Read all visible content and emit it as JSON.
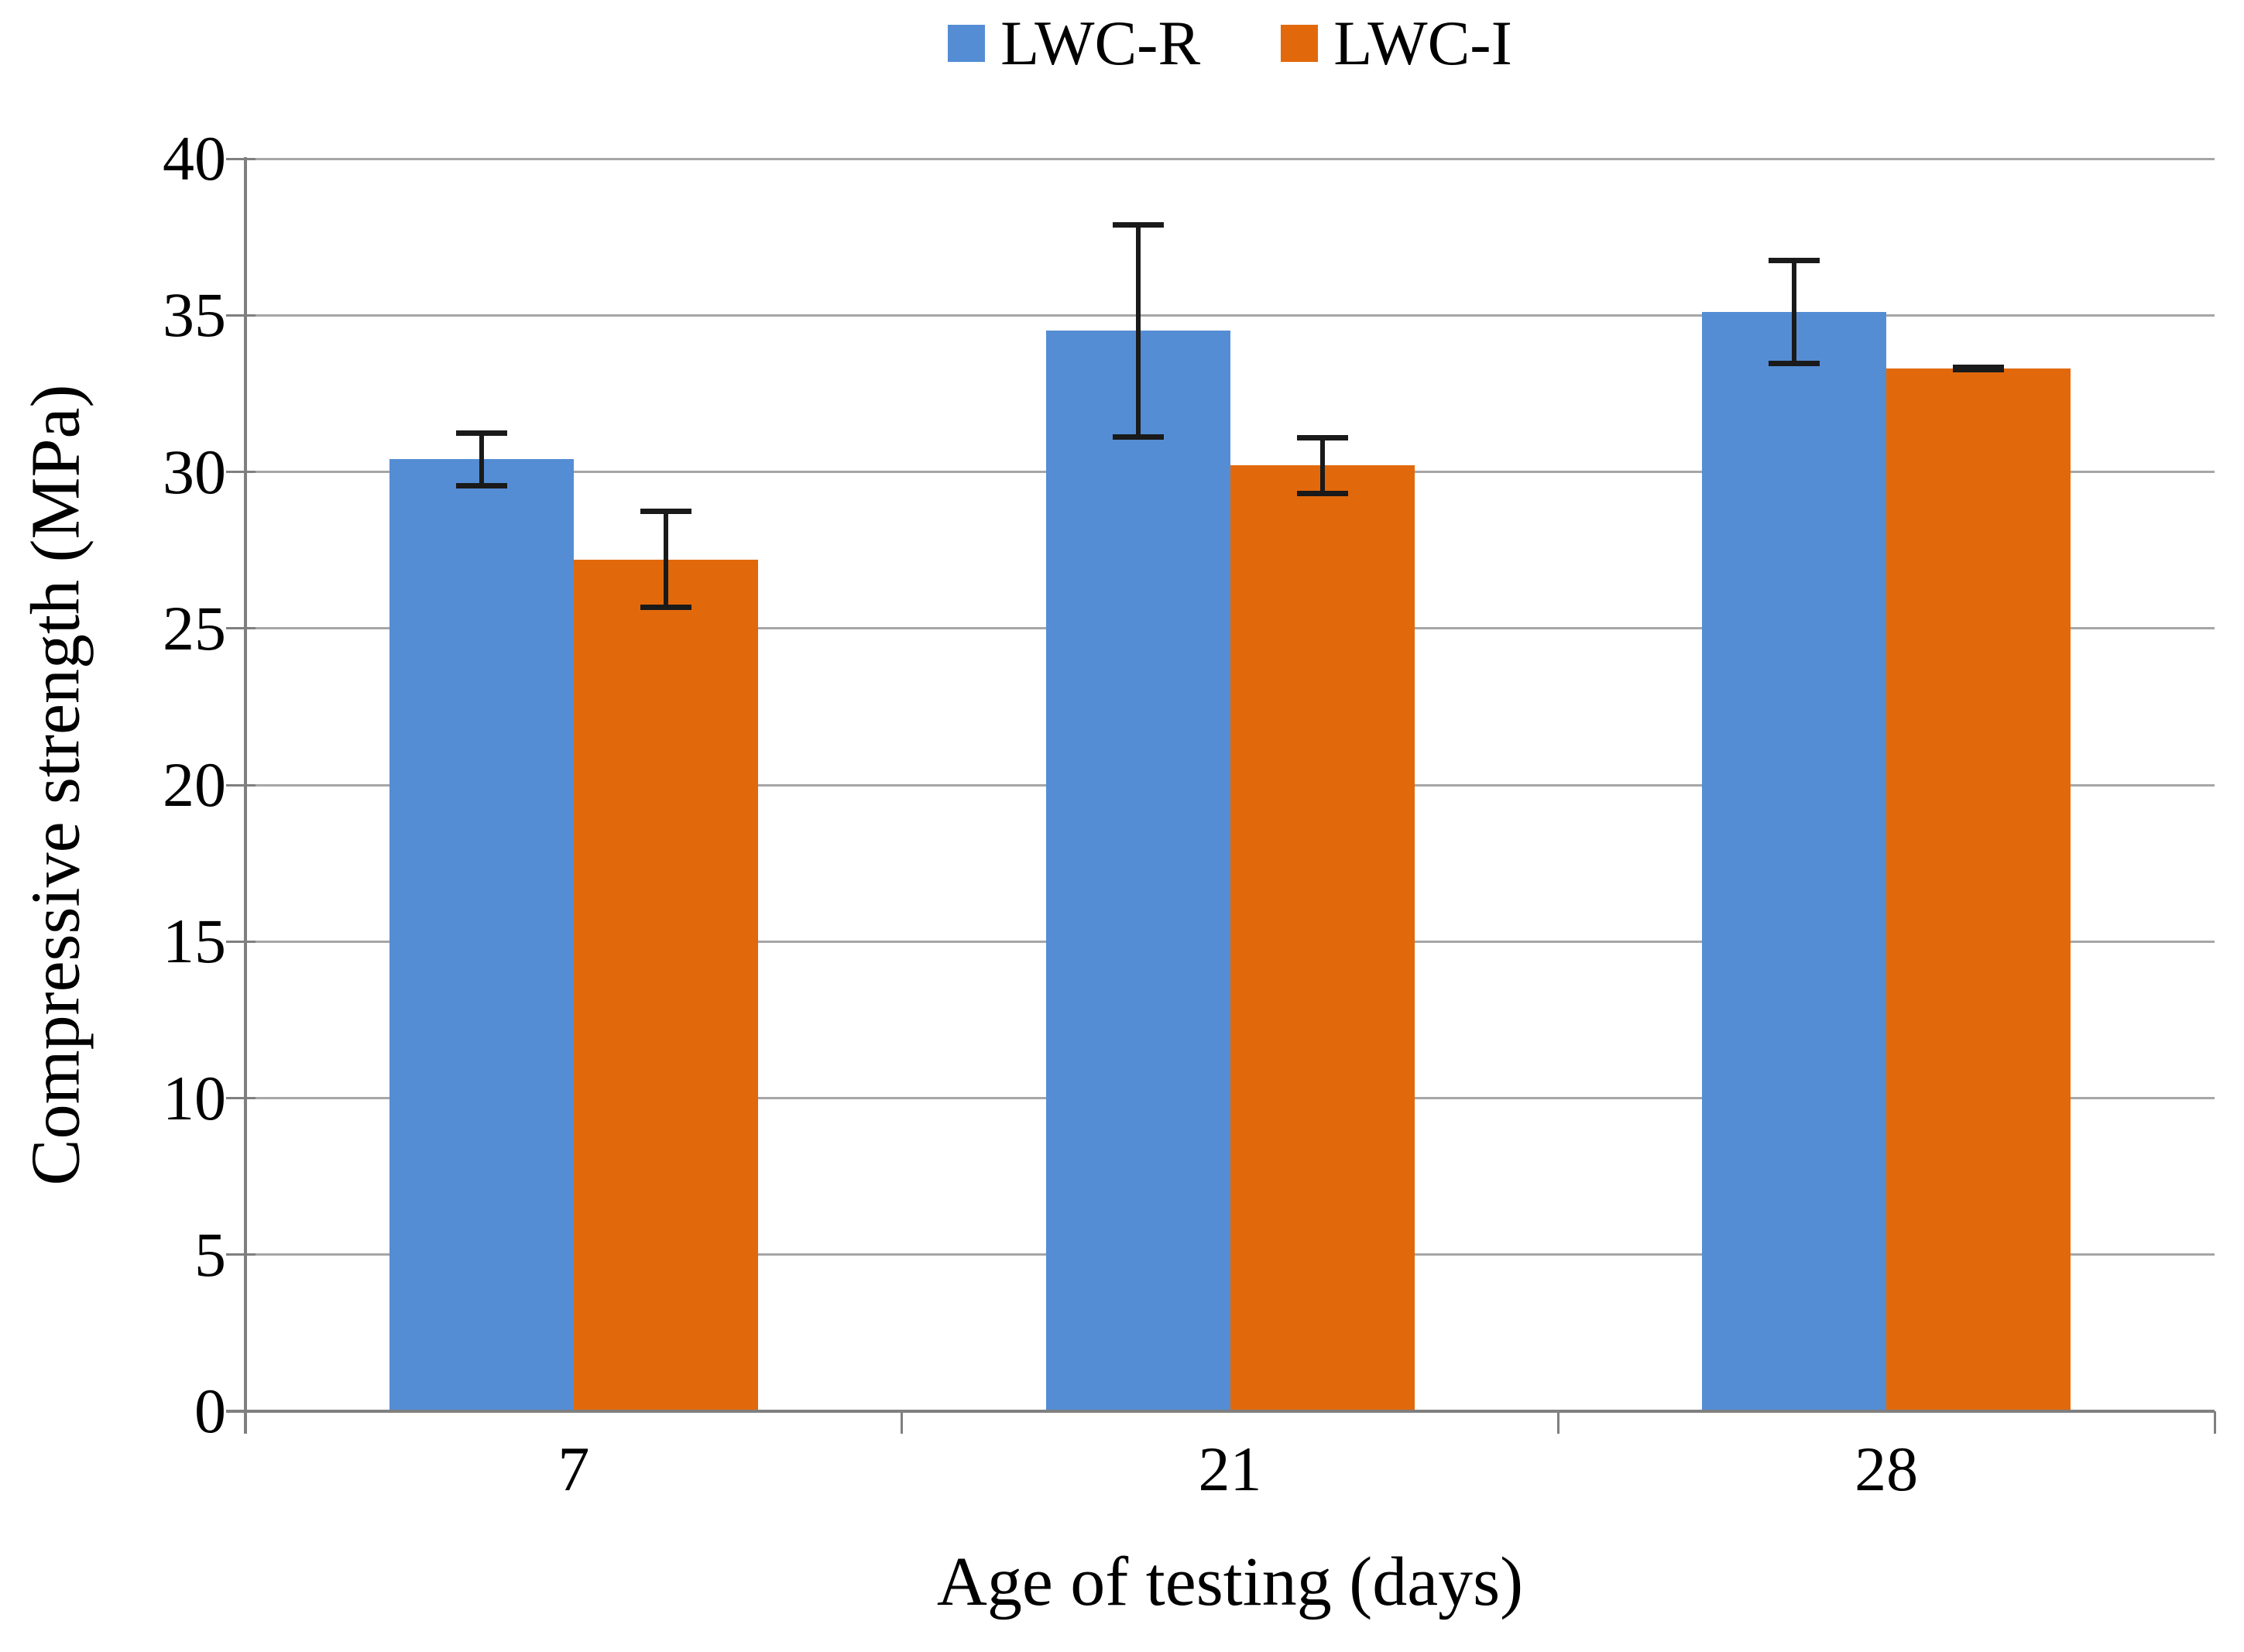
{
  "chart_data": {
    "type": "bar",
    "title": "",
    "categories": [
      "7",
      "21",
      "28"
    ],
    "series": [
      {
        "name": "LWC-R",
        "color": "#548DD4",
        "values": [
          30.4,
          34.5,
          35.1
        ],
        "errors": [
          0.85,
          3.4,
          1.65
        ]
      },
      {
        "name": "LWC-I",
        "color": "#E2690B",
        "values": [
          27.2,
          30.2,
          33.3
        ],
        "errors": [
          1.55,
          0.9,
          0.05
        ]
      }
    ],
    "xlabel": "Age of testing (days)",
    "ylabel": "Compressive strength (MPa)",
    "ylim": [
      0,
      40
    ],
    "ytick_step": 5,
    "yticks": [
      "0",
      "5",
      "10",
      "15",
      "20",
      "25",
      "30",
      "35",
      "40"
    ],
    "grid": "horizontal",
    "legend_position": "top"
  },
  "style_colors": {
    "gridline": "#A6A6A6",
    "axis": "#7F7F7F",
    "error_bar": "#1A1A1A",
    "text": "#000000",
    "background": "#FFFFFF"
  }
}
